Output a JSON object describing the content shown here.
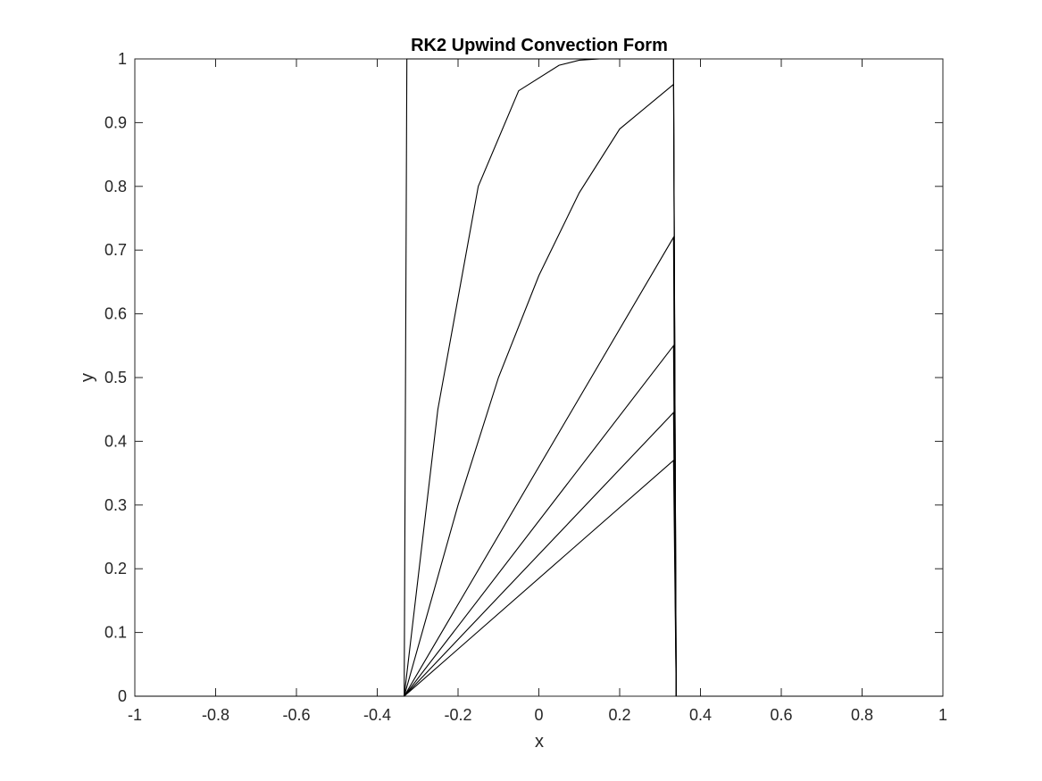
{
  "chart_data": {
    "type": "line",
    "title": "RK2 Upwind Convection Form",
    "xlabel": "x",
    "ylabel": "y",
    "xlim": [
      -1,
      1
    ],
    "ylim": [
      0,
      1
    ],
    "xticks": [
      -1,
      -0.8,
      -0.6,
      -0.4,
      -0.2,
      0,
      0.2,
      0.4,
      0.6,
      0.8,
      1
    ],
    "xtick_labels": [
      "-1",
      "-0.8",
      "-0.6",
      "-0.4",
      "-0.2",
      "0",
      "0.2",
      "0.4",
      "0.6",
      "0.8",
      "1"
    ],
    "yticks": [
      0,
      0.1,
      0.2,
      0.3,
      0.4,
      0.5,
      0.6,
      0.7,
      0.8,
      0.9,
      1
    ],
    "ytick_labels": [
      "0",
      "0.1",
      "0.2",
      "0.3",
      "0.4",
      "0.5",
      "0.6",
      "0.7",
      "0.8",
      "0.9",
      "1"
    ],
    "grid": false,
    "box": true,
    "line_color": "#000000",
    "series": [
      {
        "x": [
          -1,
          -0.3333,
          -0.3267,
          0.3333,
          0.34,
          1
        ],
        "y": [
          0,
          0,
          1,
          1,
          0,
          0
        ]
      },
      {
        "x": [
          -1,
          -0.3333,
          -0.25,
          -0.15,
          -0.05,
          0.05,
          0.1,
          0.15,
          0.2,
          0.25,
          0.3333,
          0.34,
          1
        ],
        "y": [
          0,
          0,
          0.45,
          0.8,
          0.95,
          0.99,
          0.998,
          1,
          1,
          1,
          1,
          0,
          0
        ]
      },
      {
        "x": [
          -1,
          -0.3333,
          -0.2,
          -0.1,
          0,
          0.1,
          0.2,
          0.3333,
          0.34,
          1
        ],
        "y": [
          0,
          0,
          0.3,
          0.5,
          0.66,
          0.79,
          0.89,
          0.96,
          0,
          0
        ]
      },
      {
        "x": [
          -1,
          -0.3333,
          0.3333,
          0.34,
          1
        ],
        "y": [
          0,
          0,
          0.72,
          0,
          0
        ]
      },
      {
        "x": [
          -1,
          -0.3333,
          0.3333,
          0.34,
          1
        ],
        "y": [
          0,
          0,
          0.55,
          0,
          0
        ]
      },
      {
        "x": [
          -1,
          -0.3333,
          0.3333,
          0.34,
          1
        ],
        "y": [
          0,
          0,
          0.445,
          0,
          0
        ]
      },
      {
        "x": [
          -1,
          -0.3333,
          0.3333,
          0.34,
          1
        ],
        "y": [
          0,
          0,
          0.37,
          0,
          0
        ]
      }
    ]
  }
}
